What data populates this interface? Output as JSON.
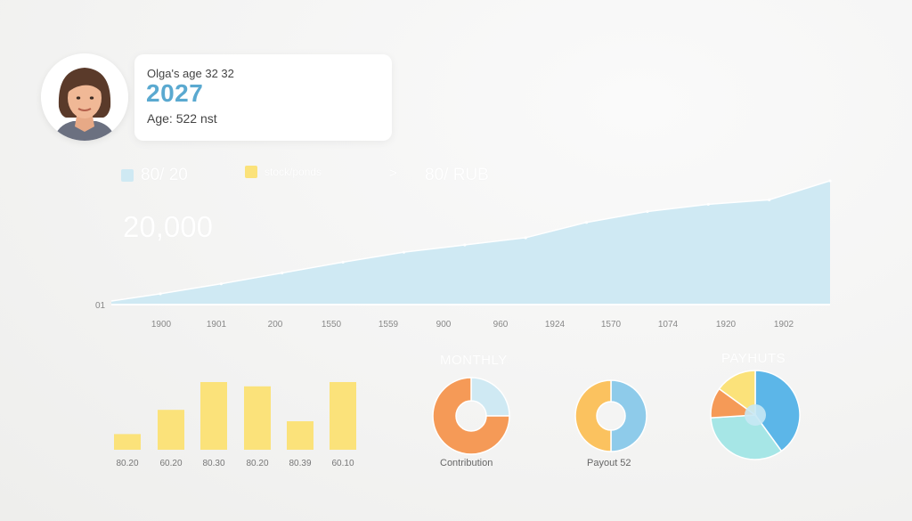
{
  "profile": {
    "name_line": "Olga's age 32 32",
    "year": "2027",
    "age_line": "Age: 522 nst"
  },
  "legend": {
    "item1": "80/ 20",
    "item2": "stock/ponds",
    "arrow": ">",
    "item3": "80/ RUB",
    "color1": "#cfe9f3",
    "color2": "#fbe27a"
  },
  "big_value": "20,000",
  "labels": {
    "monthly": "MONTHLY",
    "payouts": "PAYHUTS",
    "contribution": "Contribution",
    "payout": "Payout 52"
  },
  "chart_data": [
    {
      "type": "area",
      "x": [
        "1900",
        "1901",
        "200",
        "1550",
        "1559",
        "900",
        "960",
        "1924",
        "1570",
        "1074",
        "1920",
        "1902"
      ],
      "values": [
        1.2,
        2.3,
        3.5,
        4.7,
        5.8,
        6.6,
        7.4,
        9.1,
        10.3,
        11.1,
        11.6,
        13.7
      ],
      "ylim": [
        0,
        14
      ],
      "y_tick_label": "01",
      "color": "#cfe9f3"
    },
    {
      "type": "bar",
      "categories": [
        "80.20",
        "60.20",
        "80.30",
        "80.20",
        "80.39",
        "60.10"
      ],
      "values": [
        2.2,
        5.6,
        9.5,
        8.9,
        4.0,
        9.5
      ],
      "ylim": [
        0,
        10
      ],
      "color": "#fbe27a"
    },
    {
      "type": "pie",
      "name": "Contribution",
      "slices": [
        {
          "value": 25,
          "color": "#cfe9f3"
        },
        {
          "value": 75,
          "color": "#f59a57"
        }
      ]
    },
    {
      "type": "pie",
      "name": "Payout 52",
      "slices": [
        {
          "value": 50,
          "color": "#8ecbea"
        },
        {
          "value": 50,
          "color": "#fbc25f"
        }
      ]
    },
    {
      "type": "pie",
      "name": "PAYHUTS",
      "slices": [
        {
          "value": 40,
          "color": "#5cb6e8"
        },
        {
          "value": 34,
          "color": "#a6e6e6"
        },
        {
          "value": 11,
          "color": "#f59a57"
        },
        {
          "value": 15,
          "color": "#fbe27a"
        }
      ]
    }
  ]
}
